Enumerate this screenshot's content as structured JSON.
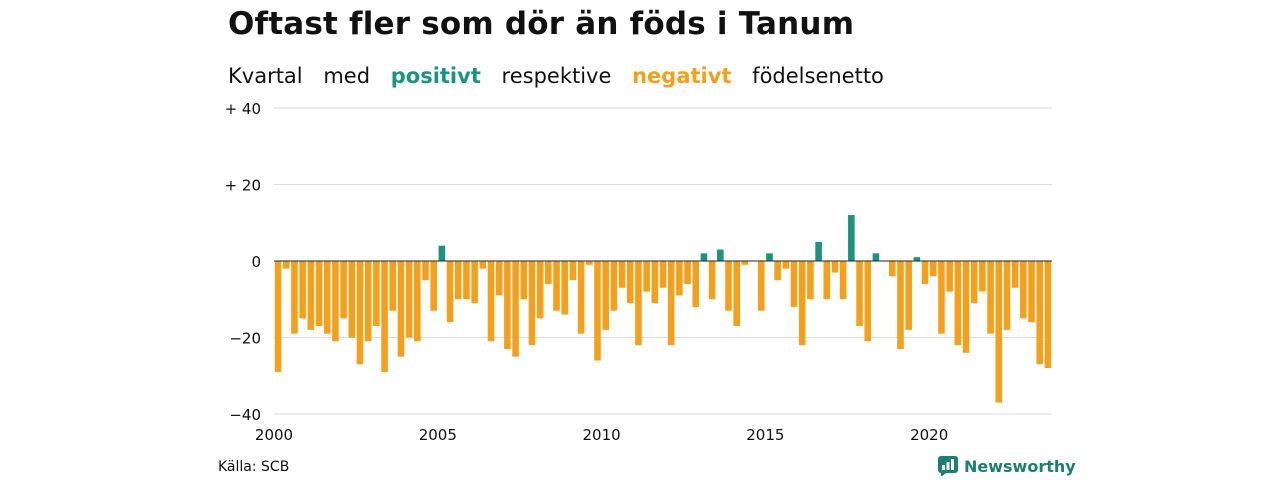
{
  "title": "Oftast fler som dör än föds i Tanum",
  "subtitle": {
    "w1": "Kvartal",
    "w2": "med",
    "positive_word": "positivt",
    "w3": "respektive",
    "negative_word": "negativt",
    "w4": "födelsenetto"
  },
  "source": "Källa: SCB",
  "logo_text": "Newsworthy",
  "colors": {
    "positive": "#1a9381",
    "negative": "#f5a01a",
    "grid": "#dddddd",
    "axis": "#222222"
  },
  "chart_data": {
    "type": "bar",
    "title": "Oftast fler som dör än föds i Tanum",
    "x_start_year": 2000,
    "periods_per_year": 4,
    "x_ticks": [
      "2000",
      "2005",
      "2010",
      "2015",
      "2020"
    ],
    "y_ticks": [
      {
        "value": 40,
        "label": "+ 40"
      },
      {
        "value": 20,
        "label": "+ 20"
      },
      {
        "value": 0,
        "label": "0"
      },
      {
        "value": -20,
        "label": "−20"
      },
      {
        "value": -40,
        "label": "−40"
      }
    ],
    "ylim": [
      -40,
      40
    ],
    "grid": true,
    "values": [
      -29,
      -2,
      -19,
      -15,
      -18,
      -17,
      -19,
      -21,
      -15,
      -20,
      -27,
      -21,
      -17,
      -29,
      -13,
      -25,
      -20,
      -21,
      -5,
      -13,
      4,
      -16,
      -10,
      -10,
      -11,
      -2,
      -21,
      -9,
      -23,
      -25,
      -10,
      -22,
      -15,
      -6,
      -13,
      -14,
      -5,
      -19,
      -1,
      -26,
      -18,
      -13,
      -7,
      -11,
      -22,
      -8,
      -11,
      -7,
      -22,
      -9,
      -6,
      -12,
      2,
      -10,
      3,
      -13,
      -17,
      -1,
      0,
      -13,
      2,
      -5,
      -2,
      -12,
      -22,
      -10,
      5,
      -10,
      -3,
      -10,
      12,
      -17,
      -21,
      2,
      0,
      -4,
      -23,
      -18,
      1,
      -6,
      -4,
      -19,
      -8,
      -22,
      -24,
      -11,
      -8,
      -19,
      -37,
      -18,
      -7,
      -15,
      -16,
      -27,
      -28
    ]
  }
}
